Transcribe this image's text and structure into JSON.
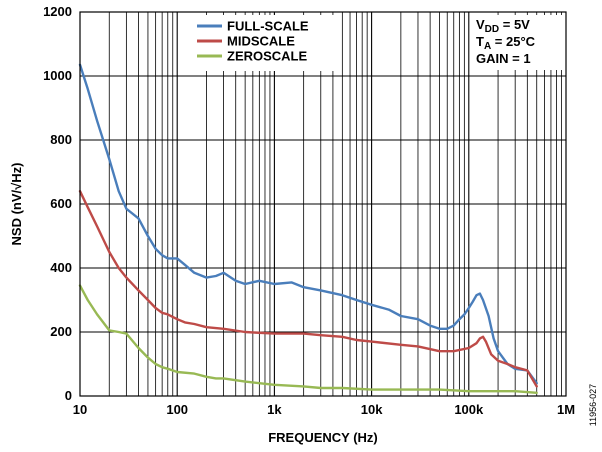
{
  "chart_data": {
    "type": "line",
    "xlabel": "FREQUENCY (Hz)",
    "ylabel": "NSD (nV/√Hz)",
    "x_scale": "log",
    "xlim": [
      10,
      1000000
    ],
    "ylim": [
      0,
      1200
    ],
    "grid": true,
    "legend_position": "top-center",
    "x_ticks": [
      {
        "value": 10,
        "label": "10"
      },
      {
        "value": 100,
        "label": "100"
      },
      {
        "value": 1000,
        "label": "1k"
      },
      {
        "value": 10000,
        "label": "10k"
      },
      {
        "value": 100000,
        "label": "100k"
      },
      {
        "value": 1000000,
        "label": "1M"
      }
    ],
    "y_ticks": [
      0,
      200,
      400,
      600,
      800,
      1000,
      1200
    ],
    "conditions": [
      {
        "main": "V",
        "sub": "DD",
        "rest": " = 5V"
      },
      {
        "main": "T",
        "sub": "A",
        "rest": " = 25°C"
      },
      {
        "main": "GAIN = 1",
        "sub": "",
        "rest": ""
      }
    ],
    "series": [
      {
        "name": "FULL-SCALE",
        "color": "#4a7ebb",
        "points": [
          [
            10,
            1035
          ],
          [
            12,
            960
          ],
          [
            15,
            860
          ],
          [
            20,
            740
          ],
          [
            25,
            640
          ],
          [
            30,
            585
          ],
          [
            40,
            555
          ],
          [
            50,
            500
          ],
          [
            60,
            460
          ],
          [
            70,
            440
          ],
          [
            80,
            430
          ],
          [
            100,
            430
          ],
          [
            120,
            410
          ],
          [
            150,
            385
          ],
          [
            200,
            370
          ],
          [
            250,
            375
          ],
          [
            300,
            385
          ],
          [
            400,
            360
          ],
          [
            500,
            350
          ],
          [
            700,
            360
          ],
          [
            1000,
            350
          ],
          [
            1500,
            355
          ],
          [
            2000,
            340
          ],
          [
            3000,
            330
          ],
          [
            5000,
            315
          ],
          [
            7000,
            300
          ],
          [
            10000,
            285
          ],
          [
            15000,
            270
          ],
          [
            20000,
            250
          ],
          [
            30000,
            240
          ],
          [
            40000,
            220
          ],
          [
            50000,
            210
          ],
          [
            60000,
            210
          ],
          [
            70000,
            220
          ],
          [
            80000,
            240
          ],
          [
            90000,
            255
          ],
          [
            100000,
            275
          ],
          [
            110000,
            295
          ],
          [
            120000,
            315
          ],
          [
            130000,
            320
          ],
          [
            140000,
            300
          ],
          [
            160000,
            250
          ],
          [
            180000,
            180
          ],
          [
            200000,
            140
          ],
          [
            250000,
            100
          ],
          [
            300000,
            85
          ],
          [
            400000,
            80
          ],
          [
            500000,
            40
          ]
        ]
      },
      {
        "name": "MIDSCALE",
        "color": "#be4b48",
        "points": [
          [
            10,
            640
          ],
          [
            12,
            590
          ],
          [
            15,
            530
          ],
          [
            20,
            450
          ],
          [
            25,
            400
          ],
          [
            30,
            370
          ],
          [
            40,
            330
          ],
          [
            50,
            300
          ],
          [
            60,
            275
          ],
          [
            70,
            260
          ],
          [
            80,
            255
          ],
          [
            100,
            240
          ],
          [
            120,
            230
          ],
          [
            150,
            225
          ],
          [
            200,
            215
          ],
          [
            300,
            210
          ],
          [
            500,
            200
          ],
          [
            1000,
            195
          ],
          [
            2000,
            195
          ],
          [
            3000,
            190
          ],
          [
            5000,
            185
          ],
          [
            7000,
            175
          ],
          [
            10000,
            170
          ],
          [
            20000,
            160
          ],
          [
            30000,
            155
          ],
          [
            50000,
            140
          ],
          [
            70000,
            140
          ],
          [
            100000,
            150
          ],
          [
            120000,
            165
          ],
          [
            130000,
            180
          ],
          [
            140000,
            185
          ],
          [
            150000,
            170
          ],
          [
            170000,
            130
          ],
          [
            200000,
            110
          ],
          [
            250000,
            100
          ],
          [
            300000,
            90
          ],
          [
            400000,
            80
          ],
          [
            500000,
            30
          ]
        ]
      },
      {
        "name": "ZEROSCALE",
        "color": "#98b954",
        "points": [
          [
            10,
            345
          ],
          [
            12,
            300
          ],
          [
            15,
            255
          ],
          [
            20,
            205
          ],
          [
            25,
            200
          ],
          [
            30,
            195
          ],
          [
            40,
            150
          ],
          [
            50,
            120
          ],
          [
            60,
            100
          ],
          [
            70,
            90
          ],
          [
            80,
            85
          ],
          [
            100,
            75
          ],
          [
            150,
            70
          ],
          [
            200,
            60
          ],
          [
            250,
            55
          ],
          [
            300,
            55
          ],
          [
            500,
            45
          ],
          [
            700,
            40
          ],
          [
            1000,
            35
          ],
          [
            2000,
            30
          ],
          [
            3000,
            25
          ],
          [
            5000,
            25
          ],
          [
            10000,
            20
          ],
          [
            20000,
            20
          ],
          [
            30000,
            20
          ],
          [
            50000,
            20
          ],
          [
            100000,
            15
          ],
          [
            200000,
            15
          ],
          [
            300000,
            15
          ],
          [
            500000,
            10
          ]
        ]
      }
    ]
  },
  "figure_id": "11956-027"
}
